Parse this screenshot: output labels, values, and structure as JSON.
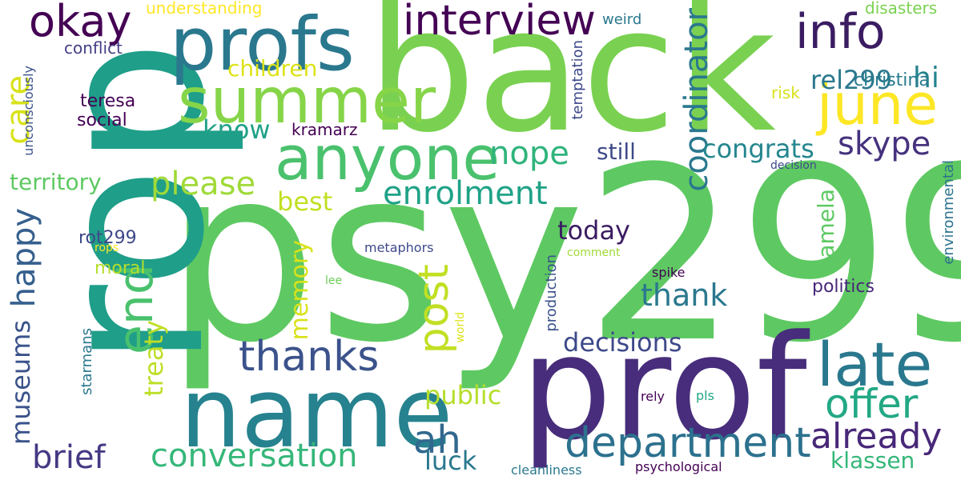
{
  "words": [
    {
      "id": "back",
      "text": "back",
      "color": "#7ad151"
    },
    {
      "id": "psy299",
      "text": "psy299",
      "color": "#5ec962"
    },
    {
      "id": "rop",
      "text": "rop",
      "color": "#1f9e89"
    },
    {
      "id": "prof",
      "text": "prof",
      "color": "#472d7b"
    },
    {
      "id": "name",
      "text": "name",
      "color": "#26828e"
    },
    {
      "id": "profs",
      "text": "profs",
      "color": "#2a788e"
    },
    {
      "id": "summer",
      "text": "summer",
      "color": "#86d549"
    },
    {
      "id": "anyone",
      "text": "anyone",
      "color": "#4ac16d"
    },
    {
      "id": "late",
      "text": "late",
      "color": "#2a788e"
    },
    {
      "id": "june",
      "text": "june",
      "color": "#fde725"
    },
    {
      "id": "info",
      "text": "info",
      "color": "#3b1c62"
    },
    {
      "id": "okay",
      "text": "okay",
      "color": "#440154"
    },
    {
      "id": "interview",
      "text": "interview",
      "color": "#440154"
    },
    {
      "id": "department",
      "text": "department",
      "color": "#2c718e"
    },
    {
      "id": "thanks",
      "text": "thanks",
      "color": "#3b528b"
    },
    {
      "id": "conversation",
      "text": "conversation",
      "color": "#35b779"
    },
    {
      "id": "offer",
      "text": "offer",
      "color": "#22a884"
    },
    {
      "id": "already",
      "text": "already",
      "color": "#482878"
    },
    {
      "id": "end",
      "text": "end",
      "color": "#4ac16d"
    },
    {
      "id": "post",
      "text": "post",
      "color": "#c2df23"
    },
    {
      "id": "coordinator",
      "text": "coordinator",
      "color": "#2a788e"
    },
    {
      "id": "enrolment",
      "text": "enrolment",
      "color": "#1fa287"
    },
    {
      "id": "please",
      "text": "please",
      "color": "#a0da39"
    },
    {
      "id": "ah",
      "text": "ah",
      "color": "#31688e"
    },
    {
      "id": "brief",
      "text": "brief",
      "color": "#443983"
    },
    {
      "id": "happy",
      "text": "happy",
      "color": "#355f8d"
    },
    {
      "id": "care",
      "text": "care",
      "color": "#d8e219"
    },
    {
      "id": "skype",
      "text": "skype",
      "color": "#46327e"
    },
    {
      "id": "congrats",
      "text": "congrats",
      "color": "#24868e"
    },
    {
      "id": "nope",
      "text": "nope",
      "color": "#2fb47c"
    },
    {
      "id": "thank",
      "text": "thank",
      "color": "#2a788e"
    },
    {
      "id": "museums",
      "text": "museums",
      "color": "#3b528b"
    },
    {
      "id": "treaty",
      "text": "treaty",
      "color": "#bddf26"
    },
    {
      "id": "public",
      "text": "public",
      "color": "#b5de2b"
    },
    {
      "id": "luck",
      "text": "luck",
      "color": "#2a788e"
    },
    {
      "id": "decisions",
      "text": "decisions",
      "color": "#3e4989"
    },
    {
      "id": "today",
      "text": "today",
      "color": "#3b1c62"
    },
    {
      "id": "klassen",
      "text": "klassen",
      "color": "#35b779"
    },
    {
      "id": "hi",
      "text": "hi",
      "color": "#25848e"
    },
    {
      "id": "rel299",
      "text": "rel299",
      "color": "#2a788e"
    },
    {
      "id": "memory",
      "text": "memory",
      "color": "#d8e219"
    },
    {
      "id": "best",
      "text": "best",
      "color": "#c2df23"
    },
    {
      "id": "know",
      "text": "know",
      "color": "#1fa187"
    },
    {
      "id": "children",
      "text": "children",
      "color": "#dde318"
    },
    {
      "id": "territory",
      "text": "territory",
      "color": "#5ec962"
    },
    {
      "id": "still",
      "text": "still",
      "color": "#3e4989"
    },
    {
      "id": "pamela",
      "text": "pamela",
      "color": "#5ec962"
    },
    {
      "id": "christina",
      "text": "christina",
      "color": "#297b8e"
    },
    {
      "id": "politics",
      "text": "politics",
      "color": "#482878"
    },
    {
      "id": "environmental",
      "text": "environmental",
      "color": "#2c728e"
    },
    {
      "id": "kramarz",
      "text": "kramarz",
      "color": "#440154"
    },
    {
      "id": "teresa",
      "text": "teresa",
      "color": "#440154"
    },
    {
      "id": "social",
      "text": "social",
      "color": "#440154"
    },
    {
      "id": "rot299",
      "text": "rot299",
      "color": "#3e4989"
    },
    {
      "id": "moral",
      "text": "moral",
      "color": "#b5de2b"
    },
    {
      "id": "understanding",
      "text": "understanding",
      "color": "#fde725"
    },
    {
      "id": "conflict",
      "text": "conflict",
      "color": "#433e85"
    },
    {
      "id": "unconsciously",
      "text": "unconsciously",
      "color": "#3b528b"
    },
    {
      "id": "weird",
      "text": "weird",
      "color": "#2a788e"
    },
    {
      "id": "disasters",
      "text": "disasters",
      "color": "#7ad151"
    },
    {
      "id": "temptation",
      "text": "temptation",
      "color": "#3e4989"
    },
    {
      "id": "risk",
      "text": "risk",
      "color": "#d8e219"
    },
    {
      "id": "decision",
      "text": "decision",
      "color": "#3e4989"
    },
    {
      "id": "metaphors",
      "text": "metaphors",
      "color": "#3e4989"
    },
    {
      "id": "comment",
      "text": "comment",
      "color": "#a0da39"
    },
    {
      "id": "spike",
      "text": "spike",
      "color": "#440154"
    },
    {
      "id": "lee",
      "text": "lee",
      "color": "#6ece58"
    },
    {
      "id": "rops",
      "text": "rops",
      "color": "#fde725"
    },
    {
      "id": "production",
      "text": "production",
      "color": "#3b528b"
    },
    {
      "id": "starmans",
      "text": "starmans",
      "color": "#2a788e"
    },
    {
      "id": "world",
      "text": "world",
      "color": "#dde318"
    },
    {
      "id": "rely",
      "text": "rely",
      "color": "#440154"
    },
    {
      "id": "pls",
      "text": "pls",
      "color": "#22a884"
    },
    {
      "id": "cleanliness",
      "text": "cleanliness",
      "color": "#2a788e"
    },
    {
      "id": "psychological",
      "text": "psychological",
      "color": "#440154"
    }
  ]
}
